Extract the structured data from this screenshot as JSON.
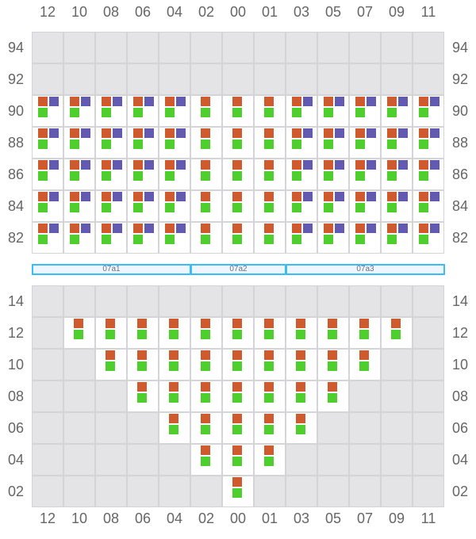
{
  "colors": {
    "o": "#cf5a2e",
    "p": "#6459b0",
    "g": "#4fcf2e",
    "empty": "#e4e4e7",
    "band_border": "#38bdf8"
  },
  "columns": [
    "12",
    "10",
    "08",
    "06",
    "04",
    "02",
    "00",
    "01",
    "03",
    "05",
    "07",
    "09",
    "11"
  ],
  "top_grid": {
    "rows": [
      {
        "label": "94",
        "cells": [
          "",
          "",
          "",
          "",
          "",
          "",
          "",
          "",
          "",
          "",
          "",
          "",
          ""
        ]
      },
      {
        "label": "92",
        "cells": [
          "",
          "",
          "",
          "",
          "",
          "",
          "",
          "",
          "",
          "",
          "",
          "",
          ""
        ]
      },
      {
        "label": "90",
        "cells": [
          "opg",
          "opg",
          "opg",
          "opg",
          "opg",
          "og",
          "og",
          "og",
          "opg",
          "opg",
          "opg",
          "opg",
          "opg"
        ]
      },
      {
        "label": "88",
        "cells": [
          "opg",
          "opg",
          "opg",
          "opg",
          "opg",
          "og",
          "og",
          "og",
          "opg",
          "opg",
          "opg",
          "opg",
          "opg"
        ]
      },
      {
        "label": "86",
        "cells": [
          "opg",
          "opg",
          "opg",
          "opg",
          "opg",
          "og",
          "og",
          "og",
          "opg",
          "opg",
          "opg",
          "opg",
          "opg"
        ]
      },
      {
        "label": "84",
        "cells": [
          "opg",
          "opg",
          "opg",
          "opg",
          "opg",
          "og",
          "og",
          "og",
          "opg",
          "opg",
          "opg",
          "opg",
          "opg"
        ]
      },
      {
        "label": "82",
        "cells": [
          "opg",
          "opg",
          "opg",
          "opg",
          "opg",
          "og",
          "og",
          "og",
          "opg",
          "opg",
          "opg",
          "opg",
          "opg"
        ]
      }
    ]
  },
  "bands": [
    {
      "label": "07a1",
      "from": 0,
      "to": 5
    },
    {
      "label": "07a2",
      "from": 5,
      "to": 8
    },
    {
      "label": "07a3",
      "from": 8,
      "to": 13
    }
  ],
  "bottom_grid": {
    "rows": [
      {
        "label": "14",
        "cells": [
          "",
          "",
          "",
          "",
          "",
          "",
          "",
          "",
          "",
          "",
          "",
          "",
          ""
        ]
      },
      {
        "label": "12",
        "cells": [
          "",
          "og",
          "og",
          "og",
          "og",
          "og",
          "og",
          "og",
          "og",
          "og",
          "og",
          "og",
          ""
        ]
      },
      {
        "label": "10",
        "cells": [
          "",
          "",
          "og",
          "og",
          "og",
          "og",
          "og",
          "og",
          "og",
          "og",
          "og",
          "",
          ""
        ]
      },
      {
        "label": "08",
        "cells": [
          "",
          "",
          "",
          "og",
          "og",
          "og",
          "og",
          "og",
          "og",
          "og",
          "",
          "",
          ""
        ]
      },
      {
        "label": "06",
        "cells": [
          "",
          "",
          "",
          "",
          "og",
          "og",
          "og",
          "og",
          "og",
          "",
          "",
          "",
          ""
        ]
      },
      {
        "label": "04",
        "cells": [
          "",
          "",
          "",
          "",
          "",
          "og",
          "og",
          "og",
          "",
          "",
          "",
          "",
          ""
        ]
      },
      {
        "label": "02",
        "cells": [
          "",
          "",
          "",
          "",
          "",
          "",
          "og",
          "",
          "",
          "",
          "",
          "",
          ""
        ]
      }
    ]
  }
}
